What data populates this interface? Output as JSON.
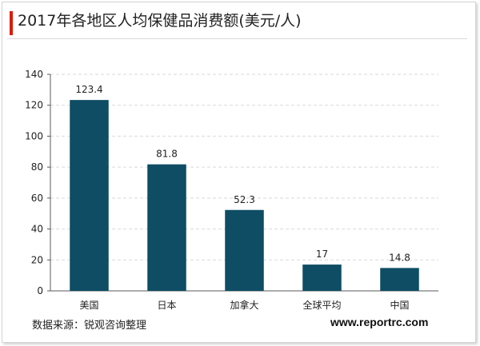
{
  "title": "2017年各地区人均保健品消费额(美元/人)",
  "source": "数据来源：锐观咨询整理",
  "website": "www.reportrc.com",
  "colors": {
    "accent_bar": "#d81e06",
    "bar": "#0e4d64",
    "grid": "#d9d9d9"
  },
  "chart_data": {
    "type": "bar",
    "categories": [
      "美国",
      "日本",
      "加拿大",
      "全球平均",
      "中国"
    ],
    "values": [
      123.4,
      81.8,
      52.3,
      17,
      14.8
    ],
    "data_labels": [
      "123.4",
      "81.8",
      "52.3",
      "17",
      "14.8"
    ],
    "ylim": [
      0,
      140
    ],
    "yticks": [
      0,
      20,
      40,
      60,
      80,
      100,
      120,
      140
    ],
    "grid": true,
    "legend": "none"
  }
}
